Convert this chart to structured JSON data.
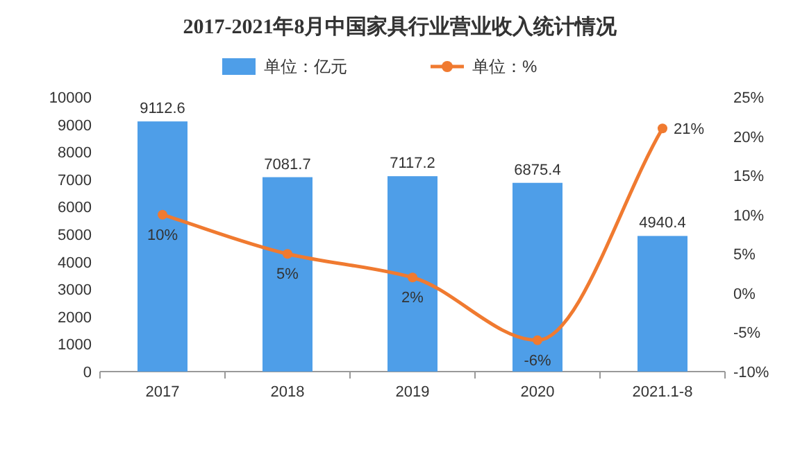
{
  "chart_data": {
    "type": "bar",
    "title": "2017-2021年8月中国家具行业营业收入统计情况",
    "categories": [
      "2017",
      "2018",
      "2019",
      "2020",
      "2021.1-8"
    ],
    "series": [
      {
        "name": "单位：亿元",
        "color": "#4e9ee8",
        "values": [
          9112.6,
          7081.7,
          7117.2,
          6875.4,
          4940.4
        ],
        "value_labels": [
          "9112.6",
          "7081.7",
          "7117.2",
          "6875.4",
          "4940.4"
        ]
      },
      {
        "name": "单位：%",
        "type": "line",
        "axis": "y2",
        "color": "#f07a30",
        "values": [
          10,
          5,
          2,
          -6,
          21
        ],
        "value_labels": [
          "10%",
          "5%",
          "2%",
          "-6%",
          "21%"
        ]
      }
    ],
    "marker": "circle",
    "legend": "top",
    "ylim": [
      0,
      10000
    ],
    "yticks": [
      0,
      1000,
      2000,
      3000,
      4000,
      5000,
      6000,
      7000,
      8000,
      9000,
      10000
    ],
    "y2lim": [
      -10,
      25
    ],
    "y2ticks": [
      {
        "value": -10,
        "label": "-10%"
      },
      {
        "value": -5,
        "label": "-5%"
      },
      {
        "value": 0,
        "label": "0%"
      },
      {
        "value": 5,
        "label": "5%"
      },
      {
        "value": 10,
        "label": "10%"
      },
      {
        "value": 15,
        "label": "15%"
      },
      {
        "value": 20,
        "label": "20%"
      },
      {
        "value": 25,
        "label": "25%"
      }
    ]
  }
}
